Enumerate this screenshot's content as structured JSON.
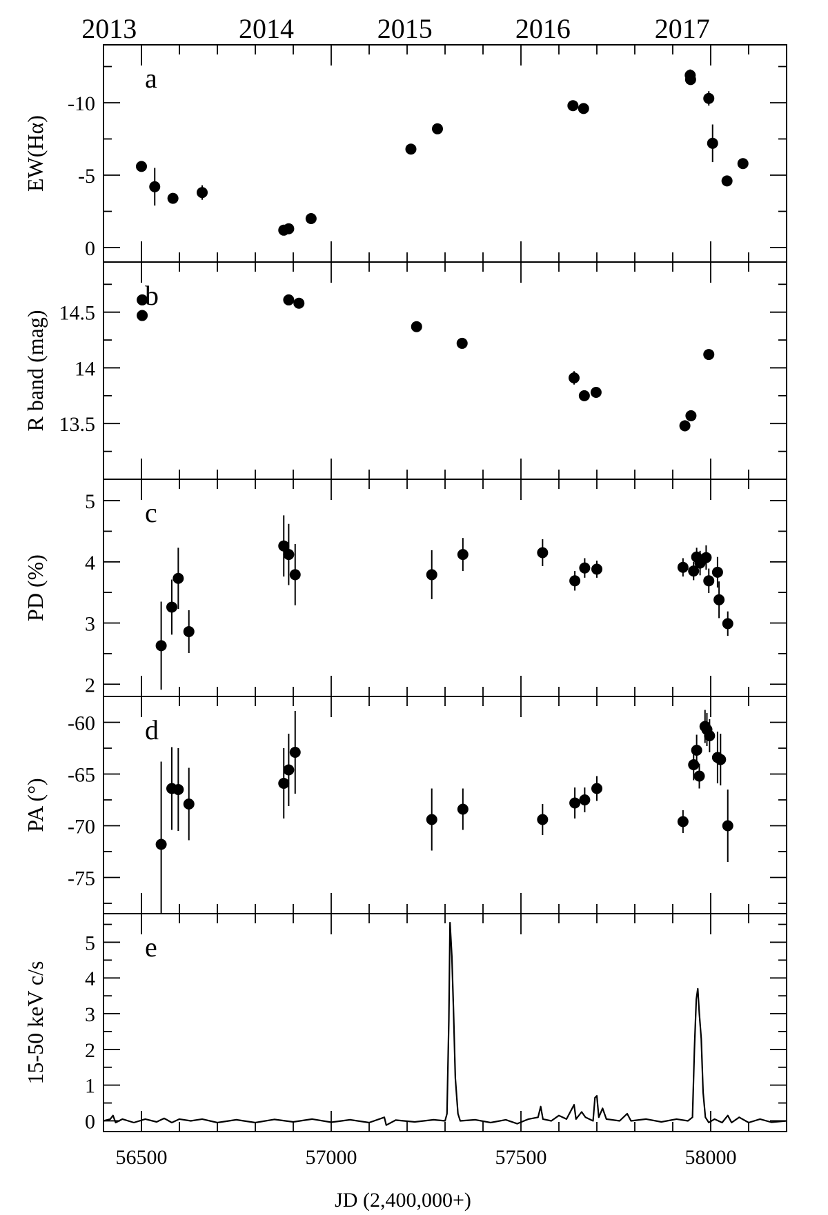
{
  "chart_data": {
    "type": "scatter",
    "x_axis": {
      "label": "JD (2,400,000+)",
      "range": [
        56400,
        58200
      ],
      "ticks": [
        56500,
        57000,
        57500,
        58000
      ],
      "tick_labels": [
        "56500",
        "57000",
        "57500",
        "58000"
      ],
      "top_year_labels": [
        {
          "text": "2013",
          "x": 56415
        },
        {
          "text": "2014",
          "x": 56829
        },
        {
          "text": "2015",
          "x": 57194
        },
        {
          "text": "2016",
          "x": 57558
        },
        {
          "text": "2017",
          "x": 57925
        }
      ]
    },
    "panels": [
      {
        "letter": "a",
        "ylabel": "EW(Hα)",
        "y_range": [
          1,
          -14
        ],
        "y_ticks": [
          0,
          -5,
          -10
        ],
        "y_tick_labels": [
          "0",
          "-5",
          "-10"
        ],
        "points": [
          {
            "x": 56500,
            "y": -5.6,
            "err": 0.2
          },
          {
            "x": 56535,
            "y": -4.2,
            "err": 1.3
          },
          {
            "x": 56583,
            "y": -3.4,
            "err": 0.2
          },
          {
            "x": 56660,
            "y": -3.8,
            "err": 0.5
          },
          {
            "x": 56875,
            "y": -1.2,
            "err": 0.2
          },
          {
            "x": 56888,
            "y": -1.3,
            "err": 0.2
          },
          {
            "x": 56947,
            "y": -2.0,
            "err": 0.2
          },
          {
            "x": 57210,
            "y": -6.8,
            "err": 0.2
          },
          {
            "x": 57280,
            "y": -8.2,
            "err": 0.2
          },
          {
            "x": 57637,
            "y": -9.8,
            "err": 0.2
          },
          {
            "x": 57665,
            "y": -9.6,
            "err": 0.2
          },
          {
            "x": 57946,
            "y": -11.9,
            "err": 0.4
          },
          {
            "x": 57947,
            "y": -11.6,
            "err": 0.2
          },
          {
            "x": 57995,
            "y": -10.3,
            "err": 0.5
          },
          {
            "x": 58005,
            "y": -7.2,
            "err": 1.3
          },
          {
            "x": 58043,
            "y": -4.6,
            "err": 0.2
          },
          {
            "x": 58085,
            "y": -5.8,
            "err": 0.2
          }
        ]
      },
      {
        "letter": "b",
        "ylabel": "R band (mag)",
        "y_range": [
          13.0,
          14.95
        ],
        "y_ticks": [
          13.5,
          14,
          14.5
        ],
        "y_tick_labels": [
          "13.5",
          "14",
          "14.5"
        ],
        "points": [
          {
            "x": 56502,
            "y": 14.47,
            "err": 0.02
          },
          {
            "x": 56502,
            "y": 14.61,
            "err": 0.02
          },
          {
            "x": 56888,
            "y": 14.61,
            "err": 0.02
          },
          {
            "x": 56915,
            "y": 14.58,
            "err": 0.02
          },
          {
            "x": 57225,
            "y": 14.37,
            "err": 0.02
          },
          {
            "x": 57345,
            "y": 14.22,
            "err": 0.02
          },
          {
            "x": 57640,
            "y": 13.91,
            "err": 0.06
          },
          {
            "x": 57667,
            "y": 13.75,
            "err": 0.02
          },
          {
            "x": 57698,
            "y": 13.78,
            "err": 0.02
          },
          {
            "x": 57932,
            "y": 13.48,
            "err": 0.05
          },
          {
            "x": 57948,
            "y": 13.57,
            "err": 0.02
          },
          {
            "x": 57995,
            "y": 14.12,
            "err": 0.02
          }
        ]
      },
      {
        "letter": "c",
        "ylabel": "PD (%)",
        "y_range": [
          1.8,
          5.35
        ],
        "y_ticks": [
          2,
          3,
          4,
          5
        ],
        "y_tick_labels": [
          "2",
          "3",
          "4",
          "5"
        ],
        "points": [
          {
            "x": 56552,
            "y": 2.63,
            "err": 0.72
          },
          {
            "x": 56580,
            "y": 3.26,
            "err": 0.45
          },
          {
            "x": 56597,
            "y": 3.73,
            "err": 0.5
          },
          {
            "x": 56625,
            "y": 2.86,
            "err": 0.35
          },
          {
            "x": 56875,
            "y": 4.26,
            "err": 0.5
          },
          {
            "x": 56888,
            "y": 4.12,
            "err": 0.5
          },
          {
            "x": 56905,
            "y": 3.79,
            "err": 0.5
          },
          {
            "x": 57265,
            "y": 3.79,
            "err": 0.4
          },
          {
            "x": 57347,
            "y": 4.12,
            "err": 0.27
          },
          {
            "x": 57557,
            "y": 4.15,
            "err": 0.22
          },
          {
            "x": 57642,
            "y": 3.69,
            "err": 0.16
          },
          {
            "x": 57668,
            "y": 3.9,
            "err": 0.16
          },
          {
            "x": 57700,
            "y": 3.88,
            "err": 0.14
          },
          {
            "x": 57927,
            "y": 3.91,
            "err": 0.15
          },
          {
            "x": 57955,
            "y": 3.85,
            "err": 0.15
          },
          {
            "x": 57963,
            "y": 4.08,
            "err": 0.15
          },
          {
            "x": 57972,
            "y": 3.98,
            "err": 0.2
          },
          {
            "x": 57988,
            "y": 4.07,
            "err": 0.2
          },
          {
            "x": 57995,
            "y": 3.69,
            "err": 0.2
          },
          {
            "x": 58018,
            "y": 3.83,
            "err": 0.25
          },
          {
            "x": 58022,
            "y": 3.38,
            "err": 0.3
          },
          {
            "x": 58045,
            "y": 2.99,
            "err": 0.2
          }
        ]
      },
      {
        "letter": "d",
        "ylabel": "PA (°)",
        "y_range": [
          -78.5,
          -57.5
        ],
        "y_ticks": [
          -60,
          -65,
          -70,
          -75
        ],
        "y_tick_labels": [
          "-60",
          "-65",
          "-70",
          "-75"
        ],
        "points": [
          {
            "x": 56552,
            "y": -71.8,
            "err": 8.0
          },
          {
            "x": 56580,
            "y": -66.4,
            "err": 4.0
          },
          {
            "x": 56597,
            "y": -66.5,
            "err": 4.0
          },
          {
            "x": 56625,
            "y": -67.9,
            "err": 3.5
          },
          {
            "x": 56875,
            "y": -65.9,
            "err": 3.4
          },
          {
            "x": 56888,
            "y": -64.6,
            "err": 3.5
          },
          {
            "x": 56905,
            "y": -62.9,
            "err": 4.0
          },
          {
            "x": 57265,
            "y": -69.4,
            "err": 3.0
          },
          {
            "x": 57347,
            "y": -68.4,
            "err": 2.0
          },
          {
            "x": 57557,
            "y": -69.4,
            "err": 1.5
          },
          {
            "x": 57642,
            "y": -67.8,
            "err": 1.5
          },
          {
            "x": 57668,
            "y": -67.5,
            "err": 1.2
          },
          {
            "x": 57700,
            "y": -66.4,
            "err": 1.2
          },
          {
            "x": 57927,
            "y": -69.6,
            "err": 1.1
          },
          {
            "x": 57955,
            "y": -64.1,
            "err": 1.5
          },
          {
            "x": 57963,
            "y": -62.7,
            "err": 1.5
          },
          {
            "x": 57970,
            "y": -65.2,
            "err": 1.2
          },
          {
            "x": 57985,
            "y": -60.4,
            "err": 1.6
          },
          {
            "x": 57990,
            "y": -60.7,
            "err": 1.6
          },
          {
            "x": 57997,
            "y": -61.3,
            "err": 1.6
          },
          {
            "x": 58018,
            "y": -63.4,
            "err": 2.5
          },
          {
            "x": 58026,
            "y": -63.6,
            "err": 2.5
          },
          {
            "x": 58045,
            "y": -70.0,
            "err": 3.5
          }
        ]
      },
      {
        "letter": "e",
        "ylabel": "15-50 keV c/s",
        "y_range": [
          -0.3,
          5.8
        ],
        "y_ticks": [
          0,
          1,
          2,
          3,
          4,
          5
        ],
        "y_tick_labels": [
          "0",
          "1",
          "2",
          "3",
          "4",
          "5"
        ],
        "series_type": "line",
        "line": [
          [
            56400,
            0.0
          ],
          [
            56418,
            0.05
          ],
          [
            56425,
            0.15
          ],
          [
            56432,
            -0.05
          ],
          [
            56450,
            0.05
          ],
          [
            56480,
            -0.05
          ],
          [
            56510,
            0.05
          ],
          [
            56540,
            -0.03
          ],
          [
            56560,
            0.07
          ],
          [
            56580,
            -0.05
          ],
          [
            56600,
            0.05
          ],
          [
            56630,
            0.0
          ],
          [
            56660,
            0.05
          ],
          [
            56700,
            -0.05
          ],
          [
            56750,
            0.03
          ],
          [
            56800,
            -0.05
          ],
          [
            56850,
            0.04
          ],
          [
            56900,
            -0.03
          ],
          [
            56950,
            0.05
          ],
          [
            57000,
            -0.04
          ],
          [
            57050,
            0.03
          ],
          [
            57100,
            -0.05
          ],
          [
            57140,
            0.1
          ],
          [
            57145,
            -0.12
          ],
          [
            57170,
            0.02
          ],
          [
            57220,
            -0.03
          ],
          [
            57270,
            0.03
          ],
          [
            57300,
            0.0
          ],
          [
            57305,
            0.2
          ],
          [
            57310,
            2.8
          ],
          [
            57313,
            5.55
          ],
          [
            57318,
            4.6
          ],
          [
            57322,
            3.2
          ],
          [
            57327,
            1.2
          ],
          [
            57334,
            0.2
          ],
          [
            57340,
            0.0
          ],
          [
            57380,
            0.03
          ],
          [
            57420,
            -0.05
          ],
          [
            57460,
            0.03
          ],
          [
            57490,
            -0.08
          ],
          [
            57520,
            0.05
          ],
          [
            57545,
            0.1
          ],
          [
            57552,
            0.4
          ],
          [
            57558,
            0.05
          ],
          [
            57580,
            0.0
          ],
          [
            57600,
            0.15
          ],
          [
            57620,
            0.05
          ],
          [
            57640,
            0.45
          ],
          [
            57645,
            0.05
          ],
          [
            57660,
            0.25
          ],
          [
            57670,
            0.1
          ],
          [
            57690,
            0.0
          ],
          [
            57695,
            0.65
          ],
          [
            57700,
            0.7
          ],
          [
            57705,
            0.1
          ],
          [
            57715,
            0.35
          ],
          [
            57725,
            0.05
          ],
          [
            57760,
            0.0
          ],
          [
            57780,
            0.2
          ],
          [
            57790,
            0.0
          ],
          [
            57830,
            0.05
          ],
          [
            57870,
            -0.03
          ],
          [
            57910,
            0.05
          ],
          [
            57940,
            0.0
          ],
          [
            57952,
            0.1
          ],
          [
            57957,
            2.0
          ],
          [
            57962,
            3.4
          ],
          [
            57966,
            3.7
          ],
          [
            57970,
            3.0
          ],
          [
            57975,
            2.3
          ],
          [
            57980,
            0.8
          ],
          [
            57986,
            0.1
          ],
          [
            57995,
            -0.05
          ],
          [
            58010,
            0.05
          ],
          [
            58030,
            -0.05
          ],
          [
            58045,
            0.15
          ],
          [
            58055,
            -0.05
          ],
          [
            58075,
            0.1
          ],
          [
            58100,
            -0.05
          ],
          [
            58130,
            0.05
          ],
          [
            58160,
            -0.04
          ],
          [
            58200,
            0.0
          ]
        ]
      }
    ],
    "grid": false,
    "legend": "none"
  }
}
